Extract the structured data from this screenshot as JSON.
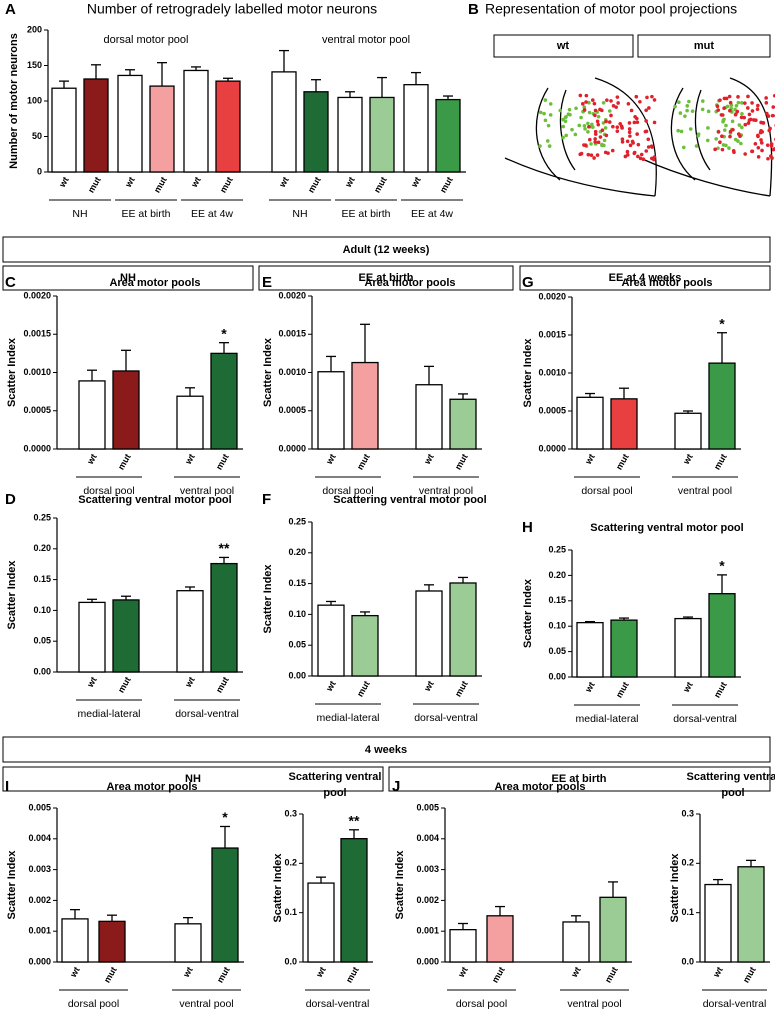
{
  "panel_b": {
    "letter": "B",
    "title": "Representation of motor pool projections",
    "labels": [
      "wt",
      "mut"
    ]
  },
  "headers": [
    "Adult (12 weeks)",
    "NH",
    "EE at birth",
    "EE at 4 weeks",
    "4 weeks",
    "NH",
    "EE at birth"
  ],
  "chart_data": [
    {
      "type": "bar",
      "panel": "A",
      "title": "Number of retrogradely labelled motor neurons",
      "ylabel": "Number of motor neurons",
      "annotations": [
        "dorsal motor pool",
        "ventral motor pool"
      ],
      "categories": [
        "wt",
        "mut",
        "wt",
        "mut",
        "wt",
        "mut",
        "wt",
        "mut",
        "wt",
        "mut",
        "wt",
        "mut"
      ],
      "groups": [
        "NH",
        "EE at birth",
        "EE at 4w",
        "NH",
        "EE at birth",
        "EE at 4w"
      ],
      "values": [
        118,
        131,
        136,
        121,
        143,
        128,
        141,
        113,
        105,
        105,
        123,
        102
      ],
      "errors": [
        10,
        20,
        8,
        33,
        5,
        4,
        30,
        17,
        8,
        28,
        17,
        5
      ],
      "colors": [
        "#ffffff",
        "#8b1a1a",
        "#ffffff",
        "#f4a0a0",
        "#ffffff",
        "#e84040",
        "#ffffff",
        "#1e6b35",
        "#ffffff",
        "#9ccc96",
        "#ffffff",
        "#3a9a48"
      ],
      "ylim": [
        0,
        200
      ],
      "yticks": [
        0,
        50,
        100,
        150,
        200
      ]
    },
    {
      "type": "bar",
      "panel": "C",
      "title": "Area motor pools",
      "ylabel": "Scatter Index",
      "categories": [
        "wt",
        "mut",
        "wt",
        "mut"
      ],
      "groups": [
        "dorsal pool",
        "ventral pool"
      ],
      "values": [
        0.00089,
        0.00102,
        0.00069,
        0.00125
      ],
      "errors": [
        0.00014,
        0.00027,
        0.00011,
        0.00014
      ],
      "stars": [
        null,
        null,
        null,
        "*"
      ],
      "colors": [
        "#ffffff",
        "#8b1a1a",
        "#ffffff",
        "#1e6b35"
      ],
      "ylim": [
        0,
        0.002
      ],
      "yticks": [
        {
          "value": 0,
          "label": "0.0000"
        },
        0.0005,
        {
          "value": 0.001,
          "label": "0.0010"
        },
        0.0015,
        {
          "value": 0.002,
          "label": "0.0020"
        }
      ]
    },
    {
      "type": "bar",
      "panel": "E",
      "title": "Area motor pools",
      "ylabel": "Scatter Index",
      "categories": [
        "wt",
        "mut",
        "wt",
        "mut"
      ],
      "groups": [
        "dorsal pool",
        "ventral pool"
      ],
      "values": [
        0.00101,
        0.00113,
        0.00084,
        0.00065
      ],
      "errors": [
        0.0002,
        0.0005,
        0.00024,
        7e-05
      ],
      "colors": [
        "#ffffff",
        "#f4a0a0",
        "#ffffff",
        "#9ccc96"
      ],
      "ylim": [
        0,
        0.002
      ],
      "yticks": [
        {
          "value": 0,
          "label": "0.0000"
        },
        0.0005,
        {
          "value": 0.001,
          "label": "0.0010"
        },
        0.0015,
        {
          "value": 0.002,
          "label": "0.0020"
        }
      ]
    },
    {
      "type": "bar",
      "panel": "G",
      "title": "Area motor pools",
      "ylabel": "Scatter Index",
      "categories": [
        "wt",
        "mut",
        "wt",
        "mut"
      ],
      "groups": [
        "dorsal pool",
        "ventral pool"
      ],
      "values": [
        0.00068,
        0.00066,
        0.00047,
        0.00113
      ],
      "errors": [
        5e-05,
        0.00014,
        3e-05,
        0.0004
      ],
      "stars": [
        null,
        null,
        null,
        "*"
      ],
      "colors": [
        "#ffffff",
        "#e84040",
        "#ffffff",
        "#3a9a48"
      ],
      "ylim": [
        0,
        0.002
      ],
      "yticks": [
        {
          "value": 0,
          "label": "0.0000"
        },
        0.0005,
        {
          "value": 0.001,
          "label": "0.0010"
        },
        0.0015,
        {
          "value": 0.002,
          "label": "0.0020"
        }
      ]
    },
    {
      "type": "bar",
      "panel": "D",
      "title": "Scattering ventral motor pool",
      "ylabel": "Scatter Index",
      "categories": [
        "wt",
        "mut",
        "wt",
        "mut"
      ],
      "groups": [
        "medial-lateral",
        "dorsal-ventral"
      ],
      "values": [
        0.113,
        0.117,
        0.132,
        0.176
      ],
      "errors": [
        0.005,
        0.006,
        0.006,
        0.01
      ],
      "stars": [
        null,
        null,
        null,
        "**"
      ],
      "colors": [
        "#ffffff",
        "#1e6b35",
        "#ffffff",
        "#1e6b35"
      ],
      "ylim": [
        0,
        0.25
      ],
      "yticks": [
        {
          "value": 0,
          "label": "0.00"
        },
        0.05,
        {
          "value": 0.1,
          "label": "0.10"
        },
        0.15,
        {
          "value": 0.2,
          "label": "0.20"
        },
        0.25
      ]
    },
    {
      "type": "bar",
      "panel": "F",
      "title": "Scattering ventral motor pool",
      "ylabel": "Scatter Index",
      "categories": [
        "wt",
        "mut",
        "wt",
        "mut"
      ],
      "groups": [
        "medial-lateral",
        "dorsal-ventral"
      ],
      "values": [
        0.115,
        0.098,
        0.138,
        0.151
      ],
      "errors": [
        0.006,
        0.006,
        0.01,
        0.009
      ],
      "colors": [
        "#ffffff",
        "#9ccc96",
        "#ffffff",
        "#9ccc96"
      ],
      "ylim": [
        0,
        0.25
      ],
      "yticks": [
        {
          "value": 0,
          "label": "0.00"
        },
        0.05,
        {
          "value": 0.1,
          "label": "0.10"
        },
        0.15,
        {
          "value": 0.2,
          "label": "0.20"
        },
        0.25
      ]
    },
    {
      "type": "bar",
      "panel": "H",
      "title": "Scattering ventral motor pool",
      "ylabel": "Scatter Index",
      "categories": [
        "wt",
        "mut",
        "wt",
        "mut"
      ],
      "groups": [
        "medial-lateral",
        "dorsal-ventral"
      ],
      "values": [
        0.107,
        0.112,
        0.115,
        0.164
      ],
      "errors": [
        0.002,
        0.004,
        0.003,
        0.037
      ],
      "stars": [
        null,
        null,
        null,
        "*"
      ],
      "colors": [
        "#ffffff",
        "#3a9a48",
        "#ffffff",
        "#3a9a48"
      ],
      "ylim": [
        0,
        0.25
      ],
      "yticks": [
        {
          "value": 0,
          "label": "0.00"
        },
        0.05,
        {
          "value": 0.1,
          "label": "0.10"
        },
        0.15,
        {
          "value": 0.2,
          "label": "0.20"
        },
        0.25
      ]
    },
    {
      "type": "bar",
      "panel": "I",
      "title": "Area motor pools",
      "ylabel": "Scatter Index",
      "categories": [
        "wt",
        "mut",
        "wt",
        "mut"
      ],
      "groups": [
        "dorsal pool",
        "ventral pool"
      ],
      "values": [
        0.0014,
        0.00132,
        0.00124,
        0.0037
      ],
      "errors": [
        0.0003,
        0.0002,
        0.0002,
        0.0007
      ],
      "stars": [
        null,
        null,
        null,
        "*"
      ],
      "colors": [
        "#ffffff",
        "#8b1a1a",
        "#ffffff",
        "#1e6b35"
      ],
      "ylim": [
        0,
        0.005
      ],
      "yticks": [
        {
          "value": 0,
          "label": "0.000"
        },
        0.001,
        0.002,
        0.003,
        0.004,
        0.005
      ]
    },
    {
      "type": "bar",
      "title": "Scattering ventral pool",
      "ylabel": "Scatter Index",
      "categories": [
        "wt",
        "mut"
      ],
      "groups": [
        "dorsal-ventral"
      ],
      "values": [
        0.16,
        0.25
      ],
      "errors": [
        0.012,
        0.018
      ],
      "stars": [
        null,
        "**"
      ],
      "colors": [
        "#ffffff",
        "#1e6b35"
      ],
      "ylim": [
        0,
        0.3
      ],
      "yticks": [
        {
          "value": 0,
          "label": "0.0"
        },
        0.1,
        0.2,
        0.3
      ]
    },
    {
      "type": "bar",
      "panel": "J",
      "title": "Area motor pools",
      "ylabel": "Scatter Index",
      "categories": [
        "wt",
        "mut",
        "wt",
        "mut"
      ],
      "groups": [
        "dorsal pool",
        "ventral pool"
      ],
      "values": [
        0.00105,
        0.0015,
        0.0013,
        0.0021
      ],
      "errors": [
        0.0002,
        0.0003,
        0.0002,
        0.0005
      ],
      "colors": [
        "#ffffff",
        "#f4a0a0",
        "#ffffff",
        "#9ccc96"
      ],
      "ylim": [
        0,
        0.005
      ],
      "yticks": [
        {
          "value": 0,
          "label": "0.000"
        },
        0.001,
        0.002,
        0.003,
        0.004,
        0.005
      ]
    },
    {
      "type": "bar",
      "title": "Scattering ventral pool",
      "ylabel": "Scatter Index",
      "categories": [
        "wt",
        "mut"
      ],
      "groups": [
        "dorsal-ventral"
      ],
      "values": [
        0.157,
        0.193
      ],
      "errors": [
        0.01,
        0.013
      ],
      "colors": [
        "#ffffff",
        "#9ccc96"
      ],
      "ylim": [
        0,
        0.3
      ],
      "yticks": [
        {
          "value": 0,
          "label": "0.0"
        },
        0.1,
        0.2,
        0.3
      ]
    }
  ]
}
